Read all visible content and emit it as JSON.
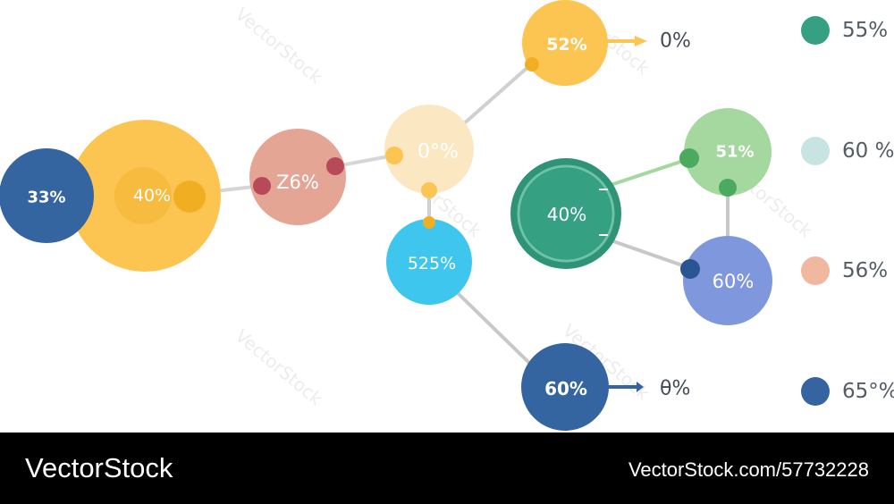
{
  "nodes": [
    {
      "id": "n1",
      "label": "33%",
      "color": "#3565a0"
    },
    {
      "id": "n2",
      "label": "40%",
      "color": "#fcc552"
    },
    {
      "id": "n3",
      "label": "Z6%",
      "color": "#e5a595"
    },
    {
      "id": "n4",
      "label": "0°%",
      "color": "#fbe8c2"
    },
    {
      "id": "n5",
      "label": "52%",
      "color": "#fcc552"
    },
    {
      "id": "n6",
      "label": "525%",
      "color": "#3fc6ee"
    },
    {
      "id": "n7",
      "label": "60%",
      "color": "#3565a0"
    },
    {
      "id": "n8",
      "label": "40%",
      "color": "#35a182"
    },
    {
      "id": "n9",
      "label": "51%",
      "color": "#a4d89e"
    },
    {
      "id": "n10",
      "label": "60%",
      "color": "#7f97dc"
    }
  ],
  "side_labels": {
    "top": "0%",
    "bottom": "θ%"
  },
  "legend": [
    {
      "label": "55%",
      "color": "#35a182"
    },
    {
      "label": "60 %",
      "color": "#c5e4e2"
    },
    {
      "label": "56%",
      "color": "#efb89f"
    },
    {
      "label": "65°%",
      "color": "#3565a0"
    }
  ],
  "watermark": "VectorStock",
  "footer": {
    "brand": "VectorStock",
    "url": "VectorStock.com/57732228"
  }
}
